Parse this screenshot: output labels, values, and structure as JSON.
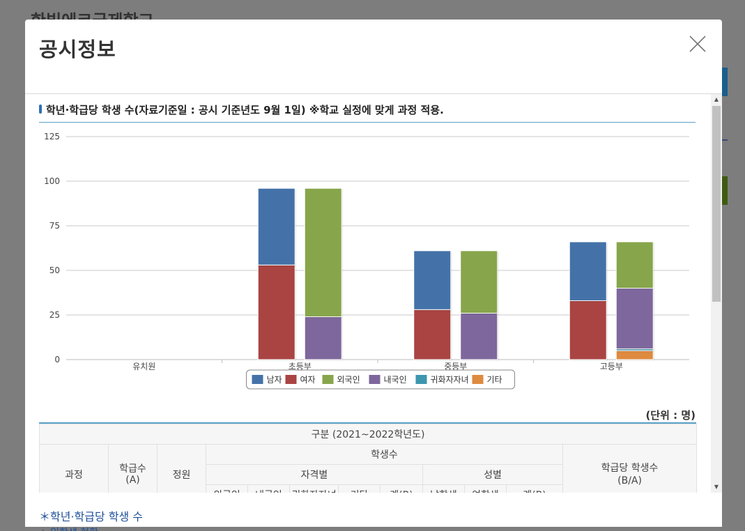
{
  "background": {
    "title": "한빛에코국제학교"
  },
  "modal": {
    "title": "공시정보",
    "close_icon": "close-icon"
  },
  "section": {
    "title": "학년·학급당 학생 수(자료기준일 : 공시 기준년도 9월 1일) ※학교 실정에 맞게 과정 적용."
  },
  "colors": {
    "male": "#4472a8",
    "female": "#a94442",
    "foreign": "#87a54b",
    "domestic": "#7e679c",
    "returnee": "#3d96ae",
    "other": "#de8a3f"
  },
  "chart_data": {
    "type": "bar",
    "stacked": true,
    "categories": [
      "유치원",
      "초등부",
      "중등부",
      "고등부"
    ],
    "yticks": [
      "0",
      "25",
      "50",
      "75",
      "100",
      "125"
    ],
    "ylim": [
      0,
      125
    ],
    "grid": true,
    "legend_position": "bottom",
    "stacks": [
      {
        "stack": "성별",
        "series": [
          {
            "name": "여자",
            "values": [
              0,
              53,
              28,
              33
            ]
          },
          {
            "name": "남자",
            "values": [
              0,
              43,
              33,
              33
            ]
          }
        ]
      },
      {
        "stack": "자격별",
        "series": [
          {
            "name": "기타",
            "values": [
              0,
              0,
              0,
              5
            ]
          },
          {
            "name": "귀화자자녀",
            "values": [
              0,
              0,
              0,
              1
            ]
          },
          {
            "name": "내국인",
            "values": [
              0,
              24,
              26,
              34
            ]
          },
          {
            "name": "외국인",
            "values": [
              0,
              72,
              35,
              26
            ]
          }
        ]
      }
    ],
    "legend": [
      "남자",
      "여자",
      "외국인",
      "내국인",
      "귀화자자녀",
      "기타"
    ]
  },
  "table": {
    "unit": "(단위 : 명)",
    "header_period": "구분 (2021~2022학년도)",
    "col_course": "과정",
    "col_classes": "학급수\n(A)",
    "col_capacity": "정원",
    "col_students": "학생수",
    "col_per_class": "학급당 학생수\n(B/A)",
    "col_qualification": "자격별",
    "col_gender": "성별",
    "sub_cols": [
      "외국인",
      "내국인",
      "귀화자자녀",
      "기타",
      "계(B)",
      "남학생",
      "여학생",
      "계(B)"
    ]
  },
  "footer": {
    "line1": "＊학년·학급당 학생 수",
    "line2": "+ 입학생 현황"
  }
}
